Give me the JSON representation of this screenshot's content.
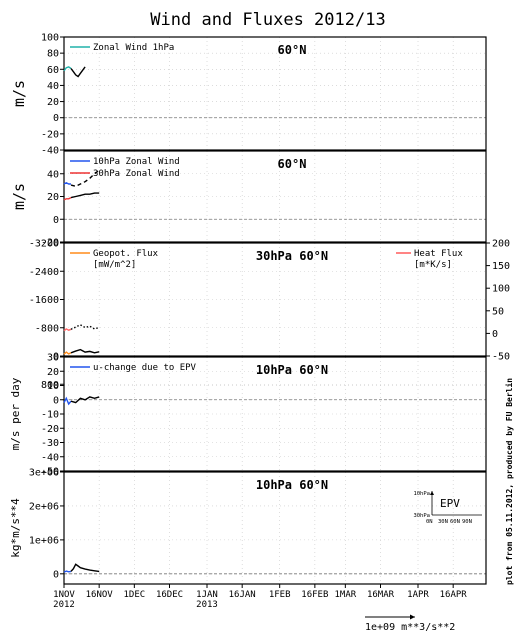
{
  "title": "Wind and Fluxes 2012/13",
  "side_note": "plot from 05.11.2012, produced by FU Berlin",
  "x_axis": {
    "ticks": [
      {
        "date": "2012-11-01",
        "label": "1NOV",
        "sub": "2012"
      },
      {
        "date": "2012-11-16",
        "label": "16NOV"
      },
      {
        "date": "2012-12-01",
        "label": "1DEC"
      },
      {
        "date": "2012-12-16",
        "label": "16DEC"
      },
      {
        "date": "2013-01-01",
        "label": "1JAN",
        "sub": "2013"
      },
      {
        "date": "2013-01-16",
        "label": "16JAN"
      },
      {
        "date": "2013-02-01",
        "label": "1FEB"
      },
      {
        "date": "2013-02-16",
        "label": "16FEB"
      },
      {
        "date": "2013-03-01",
        "label": "1MAR"
      },
      {
        "date": "2013-03-16",
        "label": "16MAR"
      },
      {
        "date": "2013-04-01",
        "label": "1APR"
      },
      {
        "date": "2013-04-16",
        "label": "16APR"
      }
    ]
  },
  "scale_note": "1e+09 m**3/s**2",
  "colors": {
    "cyan": "#20b2aa",
    "blue": "#2255ee",
    "red": "#ee3333",
    "orange": "#ff8c1a",
    "salmon": "#ff6666",
    "black": "#000000"
  },
  "chart_data": [
    {
      "type": "line",
      "panel_title": "60°N",
      "ylabel": "m/s",
      "ylim": [
        -40,
        100
      ],
      "yticks": [
        -40,
        -20,
        0,
        20,
        40,
        60,
        80,
        100
      ],
      "zero_line": true,
      "series": [
        {
          "name": "Zonal Wind 1hPa",
          "color": "cyan",
          "style": "solid",
          "x": [
            "2012-11-01",
            "2012-11-02",
            "2012-11-03",
            "2012-11-04"
          ],
          "y": [
            58,
            62,
            63,
            61
          ]
        },
        {
          "color": "black",
          "style": "solid",
          "x": [
            "2012-11-04",
            "2012-11-05",
            "2012-11-06",
            "2012-11-07",
            "2012-11-08",
            "2012-11-09",
            "2012-11-10"
          ],
          "y": [
            61,
            57,
            53,
            51,
            55,
            59,
            63
          ]
        }
      ]
    },
    {
      "type": "line",
      "panel_title": "60°N",
      "ylabel": "m/s",
      "ylim": [
        -20,
        60
      ],
      "yticks": [
        -20,
        0,
        20,
        40
      ],
      "zero_line": true,
      "series": [
        {
          "name": "10hPa Zonal Wind",
          "color": "blue",
          "style": "solid",
          "x": [
            "2012-11-01",
            "2012-11-02",
            "2012-11-03",
            "2012-11-04"
          ],
          "y": [
            31,
            32,
            31,
            31
          ]
        },
        {
          "name": "30hPa Zonal Wind",
          "color": "red",
          "style": "solid",
          "x": [
            "2012-11-01",
            "2012-11-02",
            "2012-11-03",
            "2012-11-04"
          ],
          "y": [
            17,
            18,
            18,
            19
          ]
        },
        {
          "color": "black",
          "style": "dashed",
          "x": [
            "2012-11-04",
            "2012-11-06",
            "2012-11-08",
            "2012-11-10",
            "2012-11-12",
            "2012-11-14",
            "2012-11-16"
          ],
          "y": [
            30,
            29,
            31,
            33,
            36,
            40,
            43
          ]
        },
        {
          "color": "black",
          "style": "solid",
          "x": [
            "2012-11-04",
            "2012-11-06",
            "2012-11-08",
            "2012-11-10",
            "2012-11-12",
            "2012-11-14",
            "2012-11-16"
          ],
          "y": [
            19,
            20,
            21,
            22,
            22,
            23,
            23
          ]
        }
      ]
    },
    {
      "type": "line",
      "panel_title": "30hPa 60°N",
      "ylim": [
        0,
        -3200
      ],
      "yticks": [
        -3200,
        -2400,
        -1600,
        -800,
        0,
        800
      ],
      "y2lim": [
        -50,
        200
      ],
      "y2ticks": [
        -50,
        0,
        50,
        100,
        150,
        200
      ],
      "zero_line": true,
      "legend_left": {
        "label": "Geopot. Flux",
        "unit": "[mW/m^2]",
        "color": "orange"
      },
      "legend_right": {
        "label": "Heat Flux",
        "unit": "[m*K/s]",
        "color": "salmon"
      },
      "series": [
        {
          "color": "orange",
          "style": "solid",
          "x": [
            "2012-11-01",
            "2012-11-02",
            "2012-11-03",
            "2012-11-04"
          ],
          "y": [
            -50,
            -110,
            -60,
            -90
          ]
        },
        {
          "color": "salmon",
          "style": "solid",
          "axis": "right",
          "x": [
            "2012-11-01",
            "2012-11-02",
            "2012-11-03",
            "2012-11-04"
          ],
          "y": [
            6,
            10,
            7,
            9
          ]
        },
        {
          "color": "black",
          "style": "solid",
          "x": [
            "2012-11-04",
            "2012-11-06",
            "2012-11-08",
            "2012-11-10",
            "2012-11-12",
            "2012-11-14",
            "2012-11-16"
          ],
          "y": [
            -90,
            -140,
            -180,
            -110,
            -130,
            -90,
            -120
          ]
        },
        {
          "color": "black",
          "style": "dotted",
          "axis": "right",
          "x": [
            "2012-11-04",
            "2012-11-06",
            "2012-11-08",
            "2012-11-10",
            "2012-11-12",
            "2012-11-14",
            "2012-11-16"
          ],
          "y": [
            9,
            14,
            19,
            13,
            16,
            10,
            13
          ]
        }
      ]
    },
    {
      "type": "line",
      "panel_title": "10hPa 60°N",
      "ylabel": "m/s per day",
      "ylim": [
        -50,
        30
      ],
      "yticks": [
        -50,
        -40,
        -30,
        -20,
        -10,
        0,
        10,
        20,
        30
      ],
      "zero_line": true,
      "series": [
        {
          "name": "u-change due to EPV",
          "color": "blue",
          "style": "solid",
          "x": [
            "2012-11-01",
            "2012-11-02",
            "2012-11-03",
            "2012-11-04"
          ],
          "y": [
            -2,
            1,
            -3,
            -1
          ]
        },
        {
          "color": "black",
          "style": "solid",
          "x": [
            "2012-11-04",
            "2012-11-06",
            "2012-11-08",
            "2012-11-10",
            "2012-11-12",
            "2012-11-14",
            "2012-11-16"
          ],
          "y": [
            -1,
            -2,
            1,
            0,
            2,
            1,
            2
          ]
        }
      ]
    },
    {
      "type": "line",
      "panel_title": "10hPa 60°N",
      "ylabel": "kg*m/s**4",
      "ylim": [
        -300000.0,
        3000000.0
      ],
      "yticks": [
        0,
        1000000.0,
        2000000.0,
        3000000.0
      ],
      "ytick_labels": [
        "0",
        "1e+06",
        "2e+06",
        "3e+06"
      ],
      "zero_line": true,
      "epv_inset": {
        "title": "EPV",
        "y_labels": [
          "10hPa",
          "30hPa"
        ],
        "x_labels": [
          "0N",
          "30N",
          "60N",
          "90N"
        ]
      },
      "series": [
        {
          "color": "blue",
          "style": "solid",
          "x": [
            "2012-11-01",
            "2012-11-02",
            "2012-11-03",
            "2012-11-04"
          ],
          "y": [
            50000,
            80000,
            60000,
            70000
          ]
        },
        {
          "color": "black",
          "style": "solid",
          "x": [
            "2012-11-04",
            "2012-11-05",
            "2012-11-06",
            "2012-11-07",
            "2012-11-08",
            "2012-11-10",
            "2012-11-12",
            "2012-11-14",
            "2012-11-16"
          ],
          "y": [
            70000,
            150000,
            280000,
            230000,
            180000,
            140000,
            110000,
            90000,
            70000
          ]
        }
      ]
    }
  ]
}
